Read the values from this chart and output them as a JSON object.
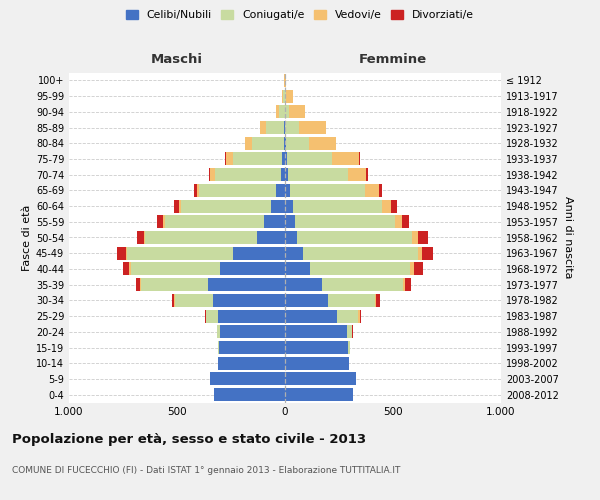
{
  "age_groups": [
    "0-4",
    "5-9",
    "10-14",
    "15-19",
    "20-24",
    "25-29",
    "30-34",
    "35-39",
    "40-44",
    "45-49",
    "50-54",
    "55-59",
    "60-64",
    "65-69",
    "70-74",
    "75-79",
    "80-84",
    "85-89",
    "90-94",
    "95-99",
    "100+"
  ],
  "birth_years": [
    "2008-2012",
    "2003-2007",
    "1998-2002",
    "1993-1997",
    "1988-1992",
    "1983-1987",
    "1978-1982",
    "1973-1977",
    "1968-1972",
    "1963-1967",
    "1958-1962",
    "1953-1957",
    "1948-1952",
    "1943-1947",
    "1938-1942",
    "1933-1937",
    "1928-1932",
    "1923-1927",
    "1918-1922",
    "1913-1917",
    "≤ 1912"
  ],
  "male_celibe": [
    330,
    345,
    310,
    305,
    300,
    310,
    335,
    355,
    300,
    240,
    130,
    95,
    65,
    42,
    20,
    12,
    5,
    3,
    1,
    0,
    0
  ],
  "male_coniugati": [
    0,
    0,
    0,
    5,
    15,
    55,
    175,
    310,
    415,
    490,
    520,
    460,
    415,
    355,
    305,
    230,
    150,
    85,
    28,
    8,
    2
  ],
  "male_vedovi": [
    0,
    0,
    0,
    0,
    0,
    0,
    2,
    5,
    5,
    5,
    5,
    8,
    10,
    12,
    20,
    30,
    30,
    28,
    12,
    6,
    1
  ],
  "male_divorziati": [
    0,
    0,
    0,
    0,
    2,
    5,
    12,
    22,
    32,
    42,
    32,
    28,
    22,
    12,
    8,
    5,
    2,
    1,
    0,
    0,
    0
  ],
  "female_celibe": [
    315,
    330,
    295,
    290,
    285,
    240,
    200,
    170,
    115,
    85,
    55,
    45,
    35,
    22,
    12,
    7,
    4,
    2,
    1,
    0,
    0
  ],
  "female_coniugati": [
    0,
    0,
    0,
    12,
    25,
    100,
    215,
    375,
    465,
    530,
    535,
    465,
    415,
    350,
    280,
    210,
    105,
    62,
    18,
    4,
    1
  ],
  "female_vedovi": [
    0,
    0,
    0,
    0,
    2,
    5,
    8,
    10,
    15,
    20,
    28,
    32,
    42,
    65,
    85,
    125,
    125,
    125,
    72,
    32,
    5
  ],
  "female_divorziati": [
    0,
    0,
    0,
    0,
    2,
    5,
    15,
    30,
    42,
    52,
    42,
    32,
    25,
    12,
    8,
    5,
    2,
    1,
    0,
    0,
    0
  ],
  "colors": {
    "celibe": "#4472c4",
    "coniugati": "#c8dba0",
    "vedovi": "#f5c070",
    "divorziati": "#cc2222"
  },
  "title": "Popolazione per età, sesso e stato civile - 2013",
  "subtitle": "COMUNE DI FUCECCHIO (FI) - Dati ISTAT 1° gennaio 2013 - Elaborazione TUTTITALIA.IT",
  "xlabel_left": "Maschi",
  "xlabel_right": "Femmine",
  "ylabel_left": "Fasce di età",
  "ylabel_right": "Anni di nascita",
  "xlim": 1000,
  "background_color": "#f0f0f0",
  "plot_bg": "#ffffff"
}
